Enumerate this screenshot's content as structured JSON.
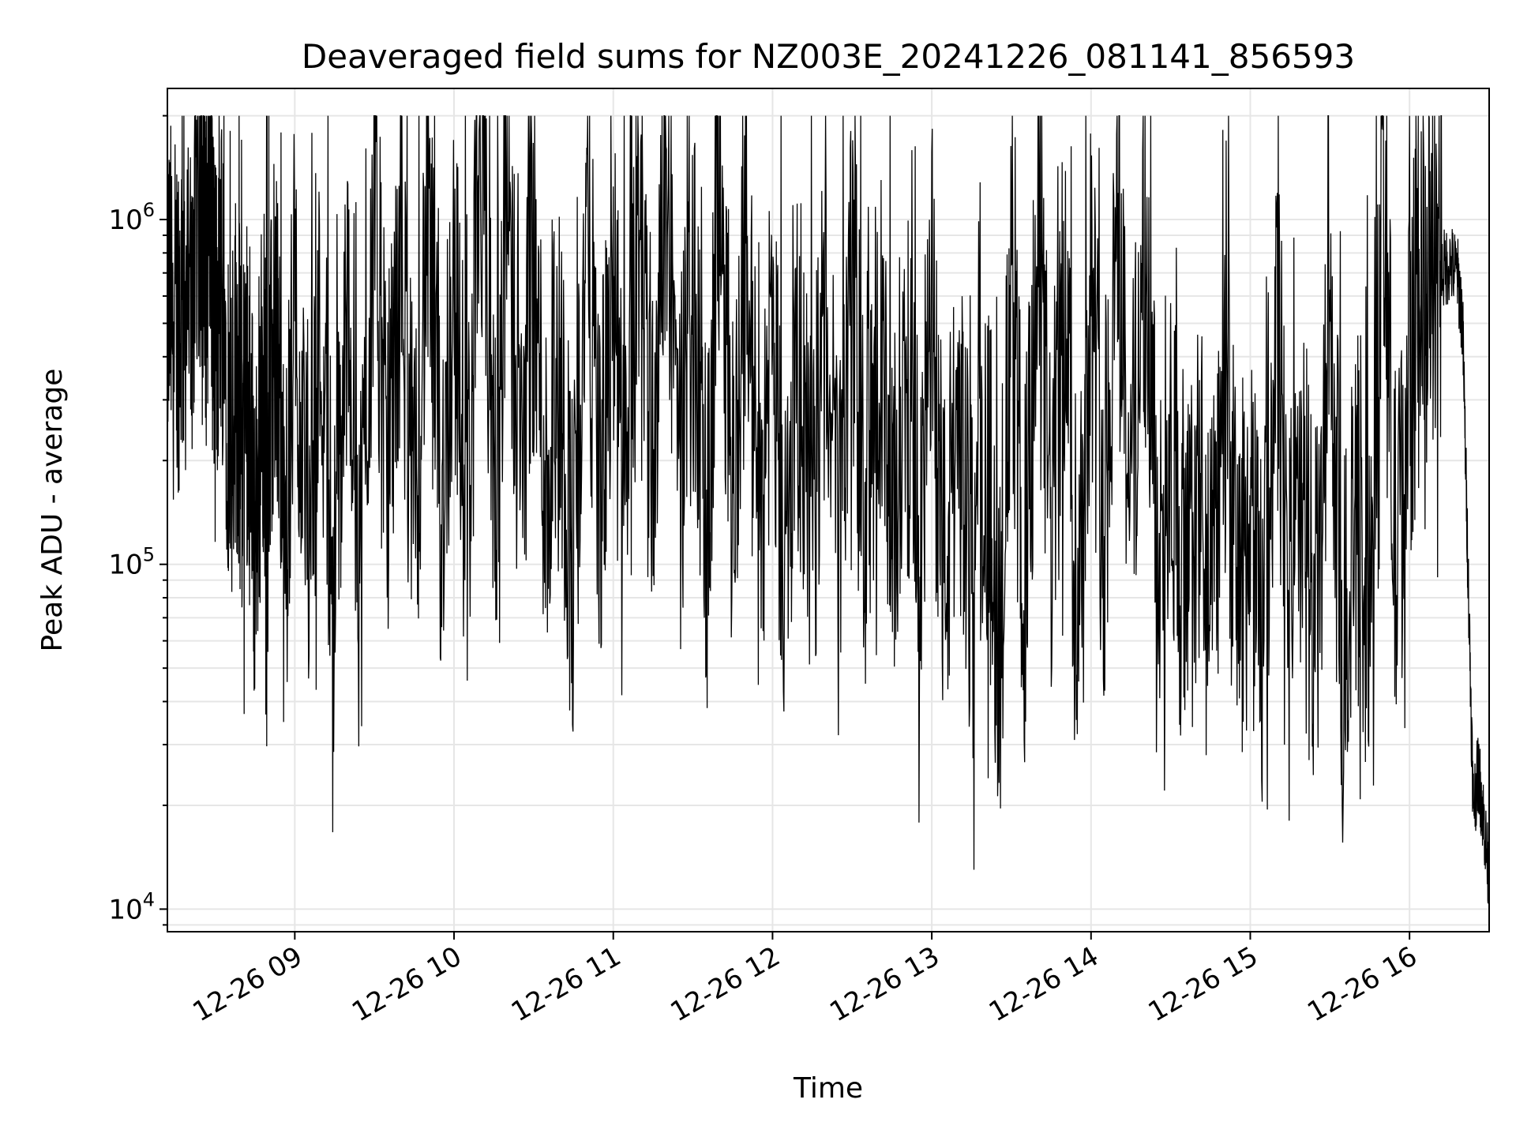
{
  "chart_data": {
    "type": "line",
    "title": "Deaveraged field sums for NZ003E_20241226_081141_856593",
    "xlabel": "Time",
    "ylabel": "Peak ADU - average",
    "yscale": "log",
    "ylim": [
      8600,
      2400000
    ],
    "xlim": [
      "2024-12-26 08:12",
      "2024-12-26 16:30"
    ],
    "grid": true,
    "legend": "none",
    "line_color": "#000000",
    "x_tick_labels": [
      "12-26 09",
      "12-26 10",
      "12-26 11",
      "12-26 12",
      "12-26 13",
      "12-26 14",
      "12-26 15",
      "12-26 16"
    ],
    "x_ticks": [
      "2024-12-26 09:00",
      "2024-12-26 10:00",
      "2024-12-26 11:00",
      "2024-12-26 12:00",
      "2024-12-26 13:00",
      "2024-12-26 14:00",
      "2024-12-26 15:00",
      "2024-12-26 16:00"
    ],
    "y_tick_labels": [
      {
        "base": "10",
        "exp": "4",
        "value": 10000
      },
      {
        "base": "10",
        "exp": "5",
        "value": 100000
      },
      {
        "base": "10",
        "exp": "6",
        "value": 1000000
      }
    ],
    "series": [
      {
        "x": [
          "2024-12-26 08:12",
          "2024-12-26 08:15",
          "2024-12-26 08:18",
          "2024-12-26 08:21",
          "2024-12-26 08:24",
          "2024-12-26 08:26",
          "2024-12-26 08:28",
          "2024-12-26 08:30",
          "2024-12-26 08:32",
          "2024-12-26 08:35",
          "2024-12-26 08:38",
          "2024-12-26 08:40",
          "2024-12-26 08:42",
          "2024-12-26 08:45",
          "2024-12-26 08:48",
          "2024-12-26 08:50",
          "2024-12-26 08:53",
          "2024-12-26 08:56",
          "2024-12-26 09:00",
          "2024-12-26 09:05",
          "2024-12-26 09:10",
          "2024-12-26 09:15",
          "2024-12-26 09:20",
          "2024-12-26 09:25",
          "2024-12-26 09:30",
          "2024-12-26 09:35",
          "2024-12-26 09:40",
          "2024-12-26 09:45",
          "2024-12-26 09:50",
          "2024-12-26 09:55",
          "2024-12-26 10:00",
          "2024-12-26 10:05",
          "2024-12-26 10:10",
          "2024-12-26 10:15",
          "2024-12-26 10:20",
          "2024-12-26 10:25",
          "2024-12-26 10:30",
          "2024-12-26 10:35",
          "2024-12-26 10:40",
          "2024-12-26 10:45",
          "2024-12-26 10:50",
          "2024-12-26 10:55",
          "2024-12-26 11:00",
          "2024-12-26 11:05",
          "2024-12-26 11:10",
          "2024-12-26 11:15",
          "2024-12-26 11:20",
          "2024-12-26 11:25",
          "2024-12-26 11:30",
          "2024-12-26 11:35",
          "2024-12-26 11:40",
          "2024-12-26 11:45",
          "2024-12-26 11:50",
          "2024-12-26 11:55",
          "2024-12-26 12:00",
          "2024-12-26 12:05",
          "2024-12-26 12:10",
          "2024-12-26 12:15",
          "2024-12-26 12:20",
          "2024-12-26 12:25",
          "2024-12-26 12:30",
          "2024-12-26 12:35",
          "2024-12-26 12:40",
          "2024-12-26 12:45",
          "2024-12-26 12:50",
          "2024-12-26 12:55",
          "2024-12-26 13:00",
          "2024-12-26 13:05",
          "2024-12-26 13:10",
          "2024-12-26 13:15",
          "2024-12-26 13:20",
          "2024-12-26 13:25",
          "2024-12-26 13:30",
          "2024-12-26 13:35",
          "2024-12-26 13:40",
          "2024-12-26 13:45",
          "2024-12-26 13:50",
          "2024-12-26 13:55",
          "2024-12-26 14:00",
          "2024-12-26 14:05",
          "2024-12-26 14:10",
          "2024-12-26 14:15",
          "2024-12-26 14:20",
          "2024-12-26 14:25",
          "2024-12-26 14:30",
          "2024-12-26 14:35",
          "2024-12-26 14:40",
          "2024-12-26 14:45",
          "2024-12-26 14:50",
          "2024-12-26 14:55",
          "2024-12-26 15:00",
          "2024-12-26 15:05",
          "2024-12-26 15:10",
          "2024-12-26 15:15",
          "2024-12-26 15:20",
          "2024-12-26 15:25",
          "2024-12-26 15:30",
          "2024-12-26 15:35",
          "2024-12-26 15:40",
          "2024-12-26 15:45",
          "2024-12-26 15:50",
          "2024-12-26 15:55",
          "2024-12-26 16:00",
          "2024-12-26 16:04",
          "2024-12-26 16:08",
          "2024-12-26 16:12",
          "2024-12-26 16:15",
          "2024-12-26 16:18",
          "2024-12-26 16:20",
          "2024-12-26 16:22",
          "2024-12-26 16:24",
          "2024-12-26 16:26",
          "2024-12-26 16:28",
          "2024-12-26 16:30"
        ],
        "y": [
          600000,
          520000,
          640000,
          560000,
          1400000,
          600000,
          1300000,
          400000,
          900000,
          300000,
          380000,
          220000,
          350000,
          120000,
          400000,
          180000,
          650000,
          90000,
          600000,
          150000,
          500000,
          85000,
          700000,
          110000,
          1200000,
          150000,
          900000,
          120000,
          1100000,
          140000,
          700000,
          130000,
          1500000,
          180000,
          1200000,
          200000,
          700000,
          150000,
          350000,
          90000,
          1000000,
          160000,
          550000,
          120000,
          1300000,
          200000,
          1700000,
          180000,
          600000,
          110000,
          1600000,
          170000,
          800000,
          130000,
          500000,
          90000,
          400000,
          120000,
          600000,
          100000,
          800000,
          130000,
          500000,
          110000,
          400000,
          120000,
          450000,
          90000,
          300000,
          80000,
          250000,
          70000,
          500000,
          90000,
          800000,
          130000,
          550000,
          80000,
          700000,
          120000,
          1300000,
          150000,
          900000,
          100000,
          250000,
          70000,
          150000,
          70000,
          300000,
          90000,
          120000,
          60000,
          500000,
          80000,
          150000,
          70000,
          400000,
          60000,
          120000,
          70000,
          1300000,
          90000,
          350000,
          600000,
          650000,
          700000,
          750000,
          700000,
          500000,
          100000,
          20000,
          25000,
          18000,
          12000
        ],
        "note": "approximate envelope of a noisy trace; the drawn line adds high-frequency jitter between these points"
      }
    ]
  }
}
